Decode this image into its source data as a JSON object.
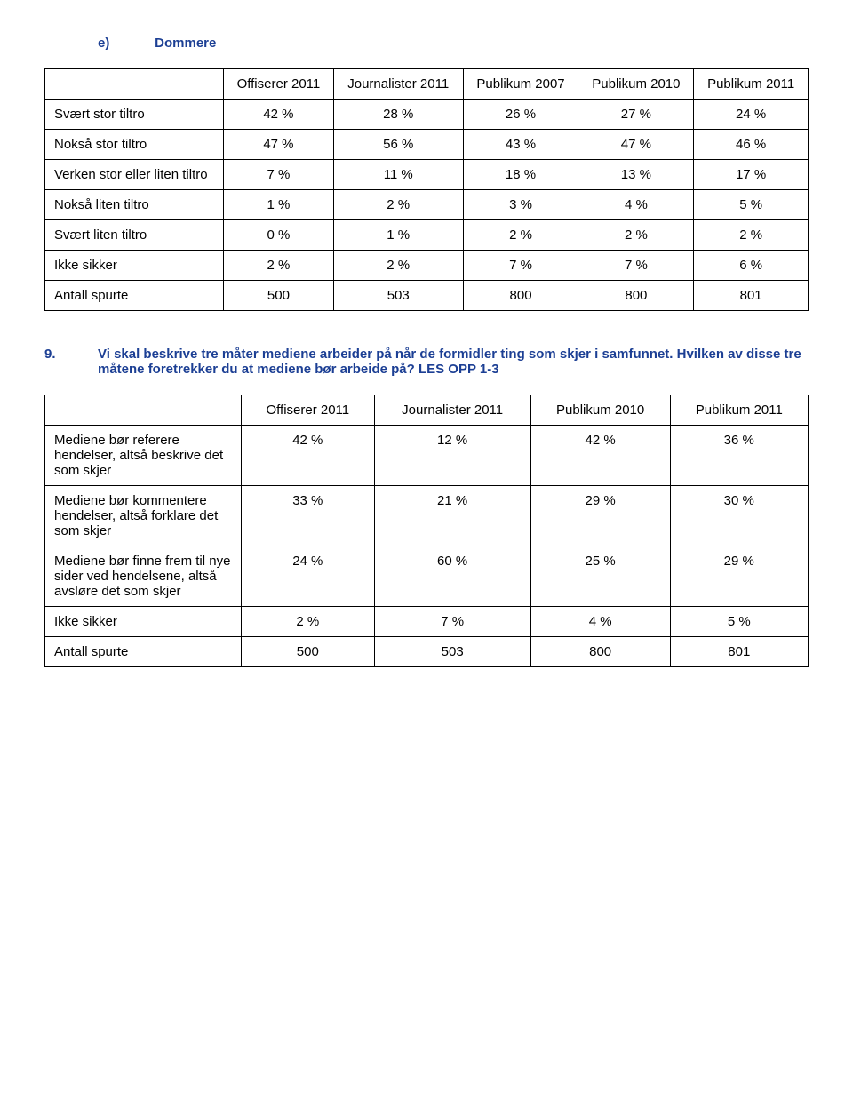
{
  "section": {
    "letter": "e)",
    "title": "Dommere"
  },
  "table1": {
    "headers": [
      "",
      "Offiserer 2011",
      "Journalister 2011",
      "Publikum 2007",
      "Publikum 2010",
      "Publikum 2011"
    ],
    "rows": [
      [
        "Svært stor tiltro",
        "42 %",
        "28 %",
        "26 %",
        "27 %",
        "24 %"
      ],
      [
        "Nokså stor tiltro",
        "47 %",
        "56 %",
        "43 %",
        "47 %",
        "46 %"
      ],
      [
        "Verken stor eller liten tiltro",
        "7 %",
        "11 %",
        "18 %",
        "13 %",
        "17 %"
      ],
      [
        "Nokså liten tiltro",
        "1 %",
        "2 %",
        "3 %",
        "4 %",
        "5 %"
      ],
      [
        "Svært liten tiltro",
        "0 %",
        "1 %",
        "2 %",
        "2 %",
        "2 %"
      ],
      [
        "Ikke sikker",
        "2 %",
        "2 %",
        "7 %",
        "7 %",
        "6 %"
      ],
      [
        "Antall spurte",
        "500",
        "503",
        "800",
        "800",
        "801"
      ]
    ]
  },
  "question9": {
    "num": "9.",
    "text": "Vi skal beskrive tre måter mediene arbeider på når de formidler ting som skjer i samfunnet. Hvilken av disse tre måtene foretrekker du at mediene bør arbeide på?     LES OPP 1-3"
  },
  "table2": {
    "headers": [
      "",
      "Offiserer 2011",
      "Journalister 2011",
      "Publikum 2010",
      "Publikum 2011"
    ],
    "rows": [
      [
        "Mediene bør referere hendelser, altså beskrive det som skjer",
        "42 %",
        "12 %",
        "42 %",
        "36 %"
      ],
      [
        "Mediene bør kommentere hendelser, altså forklare det som skjer",
        "33 %",
        "21 %",
        "29 %",
        "30 %"
      ],
      [
        "Mediene bør finne frem til nye sider ved hendelsene, altså avsløre det som skjer",
        "24 %",
        "60 %",
        "25 %",
        "29 %"
      ],
      [
        "Ikke sikker",
        "2 %",
        "7 %",
        "4 %",
        "5 %"
      ],
      [
        "Antall spurte",
        "500",
        "503",
        "800",
        "801"
      ]
    ]
  }
}
